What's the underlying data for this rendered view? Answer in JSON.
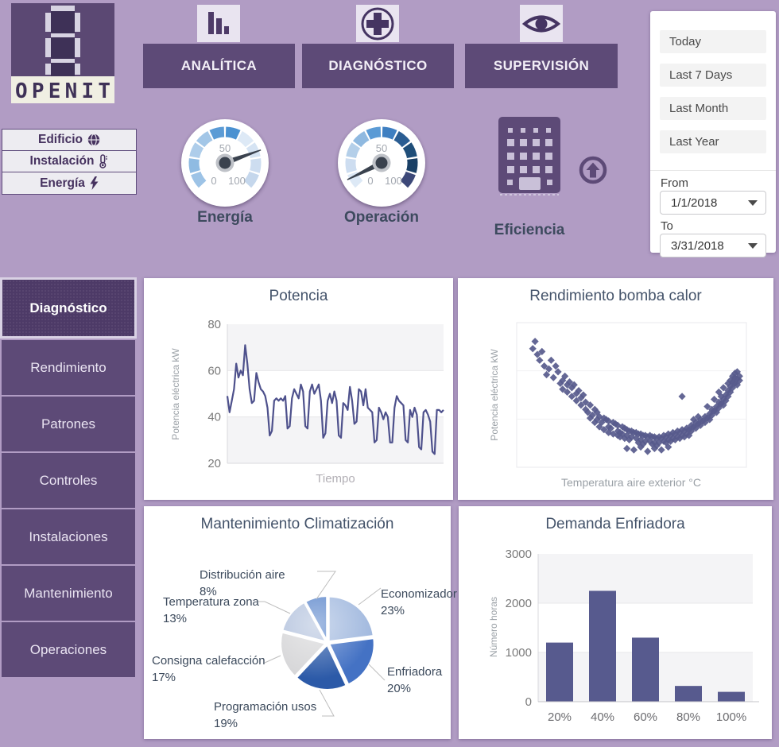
{
  "logo": {
    "text": "OPENIT"
  },
  "colors": {
    "page_bg": "#b19cc4",
    "accent_dark": "#5d4a77",
    "accent_active": "#4d3a67",
    "series": "#575a8e",
    "card_bg": "#ffffff"
  },
  "nav": {
    "items": [
      {
        "label": "ANALÍTICA",
        "icon": "bar-chart-icon"
      },
      {
        "label": "DIAGNÓSTICO",
        "icon": "medical-cross-icon"
      },
      {
        "label": "SUPERVISIÓN",
        "icon": "eye-icon"
      }
    ]
  },
  "filters": {
    "presets": [
      "Today",
      "Last 7 Days",
      "Last Month",
      "Last Year"
    ],
    "from_label": "From",
    "from_value": "1/1/2018",
    "to_label": "To",
    "to_value": "3/31/2018"
  },
  "scope_menu": {
    "items": [
      {
        "label": "Edificio",
        "icon": "globe-icon"
      },
      {
        "label": "Instalación",
        "icon": "thermometer-icon"
      },
      {
        "label": "Energía",
        "icon": "lightning-icon"
      }
    ]
  },
  "kpis": {
    "gauges": [
      {
        "label": "Energía",
        "value": 76,
        "min": 0,
        "max": 100,
        "tick_top": "50",
        "tick_left": "0",
        "tick_right": "100",
        "segment_colors": [
          "#9dc3e6",
          "#8fbbe2",
          "#aecdea",
          "#a2c6e7",
          "#5b9bd5",
          "#4a91d1",
          "#dde9f6",
          "#d5e3f3",
          "#cdddf0",
          "#c5d7ec"
        ]
      },
      {
        "label": "Operación",
        "value": 7,
        "min": 0,
        "max": 100,
        "tick_top": "50",
        "tick_left": "0",
        "tick_right": "100",
        "segment_colors": [
          "#dde9f6",
          "#cdddf0",
          "#b4cfe9",
          "#8fb9e0",
          "#5b9bd5",
          "#3e7fc1",
          "#2a5d92",
          "#1f4e79",
          "#1a4066",
          "#3c4878"
        ]
      }
    ],
    "efficiency": {
      "label": "Eficiencia"
    }
  },
  "sidebar": {
    "items": [
      {
        "label": "Diagnóstico",
        "active": true
      },
      {
        "label": "Rendimiento",
        "active": false
      },
      {
        "label": "Patrones",
        "active": false
      },
      {
        "label": "Controles",
        "active": false
      },
      {
        "label": "Instalaciones",
        "active": false
      },
      {
        "label": "Mantenimiento",
        "active": false
      },
      {
        "label": "Operaciones",
        "active": false
      }
    ]
  },
  "chart_data": [
    {
      "type": "line",
      "title": "Potencia",
      "xlabel": "Tiempo",
      "ylabel": "Potencia eléctrica kW",
      "ylim": [
        20,
        80
      ],
      "yticks": [
        20,
        40,
        60,
        80
      ],
      "grid": "banded",
      "line_color": "#4e518c",
      "values": [
        49,
        42,
        47,
        52,
        63,
        57,
        60,
        58,
        71,
        63,
        52,
        46,
        47,
        59,
        55,
        52,
        51,
        49,
        44,
        32,
        34,
        47,
        48,
        47,
        48,
        47,
        49,
        35,
        36,
        48,
        52,
        50,
        48,
        54,
        51,
        36,
        35,
        51,
        54,
        50,
        52,
        54,
        47,
        31,
        33,
        47,
        50,
        46,
        51,
        47,
        32,
        31,
        46,
        45,
        43,
        53,
        47,
        37,
        38,
        52,
        51,
        45,
        52,
        44,
        43,
        42,
        29,
        30,
        44,
        42,
        39,
        42,
        40,
        29,
        29,
        44,
        49,
        47,
        46,
        45,
        30,
        29,
        43,
        40,
        44,
        41,
        27,
        26,
        42,
        43,
        41,
        38,
        25,
        24,
        43,
        43,
        42,
        43
      ]
    },
    {
      "type": "scatter",
      "title": "Rendimiento bomba calor",
      "xlabel": "Temperatura aire exterior °C",
      "ylabel": "Potencia eléctrica kW",
      "marker": "diamond",
      "marker_color": "#575a8c",
      "axes_unlabeled": true,
      "points": [
        [
          7,
          82
        ],
        [
          8,
          87
        ],
        [
          9,
          78
        ],
        [
          10,
          74
        ],
        [
          11,
          80
        ],
        [
          12,
          70
        ],
        [
          13,
          64
        ],
        [
          14,
          68
        ],
        [
          15,
          74
        ],
        [
          16,
          62
        ],
        [
          17,
          70
        ],
        [
          18,
          66
        ],
        [
          19,
          58
        ],
        [
          20,
          54
        ],
        [
          20,
          60
        ],
        [
          21,
          63
        ],
        [
          22,
          52
        ],
        [
          22,
          57
        ],
        [
          23,
          59
        ],
        [
          24,
          49
        ],
        [
          24,
          55
        ],
        [
          25,
          57
        ],
        [
          26,
          46
        ],
        [
          26,
          51
        ],
        [
          27,
          53
        ],
        [
          28,
          43
        ],
        [
          28,
          48
        ],
        [
          29,
          50
        ],
        [
          30,
          40
        ],
        [
          30,
          45
        ],
        [
          31,
          38
        ],
        [
          32,
          43
        ],
        [
          32,
          34
        ],
        [
          33,
          36
        ],
        [
          34,
          40
        ],
        [
          34,
          31
        ],
        [
          35,
          33
        ],
        [
          35,
          38
        ],
        [
          36,
          35
        ],
        [
          36,
          28
        ],
        [
          37,
          31
        ],
        [
          38,
          34
        ],
        [
          38,
          26
        ],
        [
          39,
          33
        ],
        [
          40,
          28
        ],
        [
          40,
          32
        ],
        [
          40,
          24
        ],
        [
          41,
          27
        ],
        [
          42,
          31
        ],
        [
          42,
          23
        ],
        [
          43,
          30
        ],
        [
          44,
          25
        ],
        [
          44,
          29
        ],
        [
          44,
          22
        ],
        [
          45,
          24
        ],
        [
          45,
          21
        ],
        [
          46,
          28
        ],
        [
          46,
          23
        ],
        [
          47,
          27
        ],
        [
          47,
          20
        ],
        [
          48,
          22
        ],
        [
          48,
          26
        ],
        [
          48,
          13
        ],
        [
          49,
          25
        ],
        [
          49,
          19
        ],
        [
          50,
          21
        ],
        [
          50,
          25
        ],
        [
          51,
          24
        ],
        [
          51,
          12
        ],
        [
          52,
          20
        ],
        [
          52,
          24
        ],
        [
          53,
          23
        ],
        [
          53,
          17
        ],
        [
          54,
          19
        ],
        [
          54,
          23
        ],
        [
          54,
          14
        ],
        [
          55,
          22
        ],
        [
          55,
          16
        ],
        [
          56,
          18
        ],
        [
          56,
          22
        ],
        [
          57,
          21
        ],
        [
          57,
          11
        ],
        [
          58,
          18
        ],
        [
          58,
          22
        ],
        [
          59,
          21
        ],
        [
          59,
          16
        ],
        [
          60,
          17
        ],
        [
          60,
          21
        ],
        [
          60,
          13
        ],
        [
          61,
          20
        ],
        [
          61,
          15
        ],
        [
          62,
          17
        ],
        [
          62,
          21
        ],
        [
          63,
          20
        ],
        [
          63,
          12
        ],
        [
          64,
          18
        ],
        [
          64,
          22
        ],
        [
          65,
          21
        ],
        [
          65,
          17
        ],
        [
          66,
          19
        ],
        [
          66,
          23
        ],
        [
          66,
          14
        ],
        [
          67,
          22
        ],
        [
          67,
          18
        ],
        [
          68,
          20
        ],
        [
          68,
          24
        ],
        [
          69,
          23
        ],
        [
          69,
          19
        ],
        [
          70,
          21
        ],
        [
          70,
          25
        ],
        [
          71,
          24
        ],
        [
          71,
          20
        ],
        [
          72,
          22
        ],
        [
          72,
          26
        ],
        [
          72,
          49
        ],
        [
          73,
          25
        ],
        [
          73,
          21
        ],
        [
          74,
          23
        ],
        [
          74,
          27
        ],
        [
          75,
          26
        ],
        [
          75,
          22
        ],
        [
          76,
          25
        ],
        [
          76,
          29
        ],
        [
          77,
          28
        ],
        [
          77,
          33
        ],
        [
          78,
          27
        ],
        [
          78,
          31
        ],
        [
          79,
          30
        ],
        [
          79,
          35
        ],
        [
          80,
          29
        ],
        [
          80,
          33
        ],
        [
          81,
          32
        ],
        [
          82,
          31
        ],
        [
          82,
          35
        ],
        [
          83,
          34
        ],
        [
          83,
          42
        ],
        [
          84,
          33
        ],
        [
          84,
          37
        ],
        [
          85,
          36
        ],
        [
          85,
          40
        ],
        [
          86,
          39
        ],
        [
          86,
          47
        ],
        [
          87,
          38
        ],
        [
          87,
          42
        ],
        [
          88,
          41
        ],
        [
          88,
          45
        ],
        [
          88,
          52
        ],
        [
          89,
          44
        ],
        [
          89,
          49
        ],
        [
          90,
          43
        ],
        [
          90,
          47
        ],
        [
          90,
          55
        ],
        [
          91,
          46
        ],
        [
          91,
          50
        ],
        [
          92,
          49
        ],
        [
          92,
          53
        ],
        [
          92,
          58
        ],
        [
          93,
          52
        ],
        [
          93,
          56
        ],
        [
          93,
          60
        ],
        [
          94,
          55
        ],
        [
          94,
          59
        ],
        [
          94,
          63
        ],
        [
          95,
          58
        ],
        [
          95,
          62
        ],
        [
          95,
          65
        ],
        [
          96,
          61
        ],
        [
          96,
          57
        ],
        [
          96,
          66
        ],
        [
          97,
          60
        ],
        [
          97,
          63
        ]
      ]
    },
    {
      "type": "pie",
      "title": "Mantenimiento Climatización",
      "slices": [
        {
          "label": "Economizador",
          "pct": 23,
          "pct_label": "23%",
          "color": "#a3badf"
        },
        {
          "label": "Enfriadora",
          "pct": 20,
          "pct_label": "20%",
          "color": "#4472c4"
        },
        {
          "label": "Programación usos",
          "pct": 19,
          "pct_label": "19%",
          "color": "#2c5aa8"
        },
        {
          "label": "Consigna calefacción",
          "pct": 17,
          "pct_label": "17%",
          "color": "#d6d6d8"
        },
        {
          "label": "Temperatura zona",
          "pct": 13,
          "pct_label": "13%",
          "color": "#b3c2dd"
        },
        {
          "label": "Distribución aire",
          "pct": 8,
          "pct_label": "8%",
          "color": "#5b86cb"
        }
      ]
    },
    {
      "type": "bar",
      "title": "Demanda Enfriadora",
      "ylabel": "Número horas",
      "categories": [
        "20%",
        "40%",
        "60%",
        "80%",
        "100%"
      ],
      "values": [
        1200,
        2250,
        1300,
        320,
        200
      ],
      "ylim": [
        0,
        3000
      ],
      "yticks": [
        0,
        1000,
        2000,
        3000
      ],
      "grid": "banded",
      "bar_color": "#575a8e"
    }
  ]
}
